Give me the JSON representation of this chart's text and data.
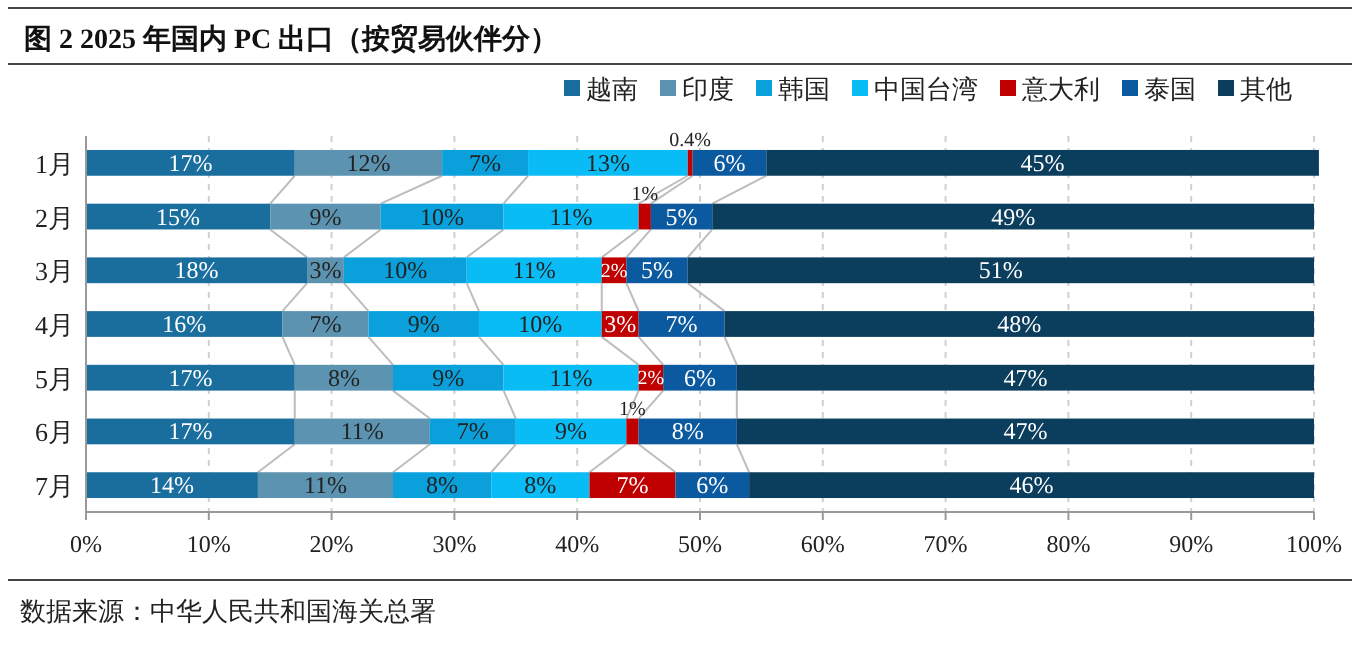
{
  "chart_data": {
    "type": "bar",
    "orientation": "horizontal",
    "stacked": true,
    "title": "图 2 2025 年国内 PC 出口（按贸易伙伴分）",
    "categories": [
      "1月",
      "2月",
      "3月",
      "4月",
      "5月",
      "6月",
      "7月"
    ],
    "series": [
      {
        "name": "越南",
        "color": "#1a6e9e",
        "values": [
          17,
          15,
          18,
          16,
          17,
          17,
          14
        ],
        "value_labels": [
          "17%",
          "15%",
          "18%",
          "16%",
          "17%",
          "17%",
          "14%"
        ]
      },
      {
        "name": "印度",
        "color": "#5b93b0",
        "values": [
          12,
          9,
          3,
          7,
          8,
          11,
          11
        ],
        "value_labels": [
          "12%",
          "9%",
          "3%",
          "7%",
          "8%",
          "11%",
          "11%"
        ]
      },
      {
        "name": "韩国",
        "color": "#0aa0db",
        "values": [
          7,
          10,
          10,
          9,
          9,
          7,
          8
        ],
        "value_labels": [
          "7%",
          "10%",
          "10%",
          "9%",
          "9%",
          "7%",
          "8%"
        ]
      },
      {
        "name": "中国台湾",
        "color": "#0abcf5",
        "values": [
          13,
          11,
          11,
          10,
          11,
          9,
          8
        ],
        "value_labels": [
          "13%",
          "11%",
          "11%",
          "10%",
          "11%",
          "9%",
          "8%"
        ]
      },
      {
        "name": "意大利",
        "color": "#c00000",
        "values": [
          0.4,
          1,
          2,
          3,
          2,
          1,
          7
        ],
        "value_labels": [
          "0.4%",
          "1%",
          "2%",
          "3%",
          "2%",
          "1%",
          "7%"
        ]
      },
      {
        "name": "泰国",
        "color": "#0b5aa0",
        "values": [
          6,
          5,
          5,
          7,
          6,
          8,
          6
        ],
        "value_labels": [
          "6%",
          "5%",
          "5%",
          "7%",
          "6%",
          "8%",
          "6%"
        ]
      },
      {
        "name": "其他",
        "color": "#0b3d5c",
        "values": [
          45,
          49,
          51,
          48,
          47,
          47,
          46
        ],
        "value_labels": [
          "45%",
          "49%",
          "51%",
          "48%",
          "47%",
          "47%",
          "46%"
        ]
      }
    ],
    "xlim": [
      0,
      100
    ],
    "xticks": [
      {
        "value": 0,
        "label": "0%"
      },
      {
        "value": 10,
        "label": "10%"
      },
      {
        "value": 20,
        "label": "20%"
      },
      {
        "value": 30,
        "label": "30%"
      },
      {
        "value": 40,
        "label": "40%"
      },
      {
        "value": 50,
        "label": "50%"
      },
      {
        "value": 60,
        "label": "60%"
      },
      {
        "value": 70,
        "label": "70%"
      },
      {
        "value": 80,
        "label": "80%"
      },
      {
        "value": 90,
        "label": "90%"
      },
      {
        "value": 100,
        "label": "100%"
      }
    ],
    "grid": "x",
    "legend": "top right",
    "annotations": [
      "数据来源：中华人民共和国海关总署"
    ]
  }
}
